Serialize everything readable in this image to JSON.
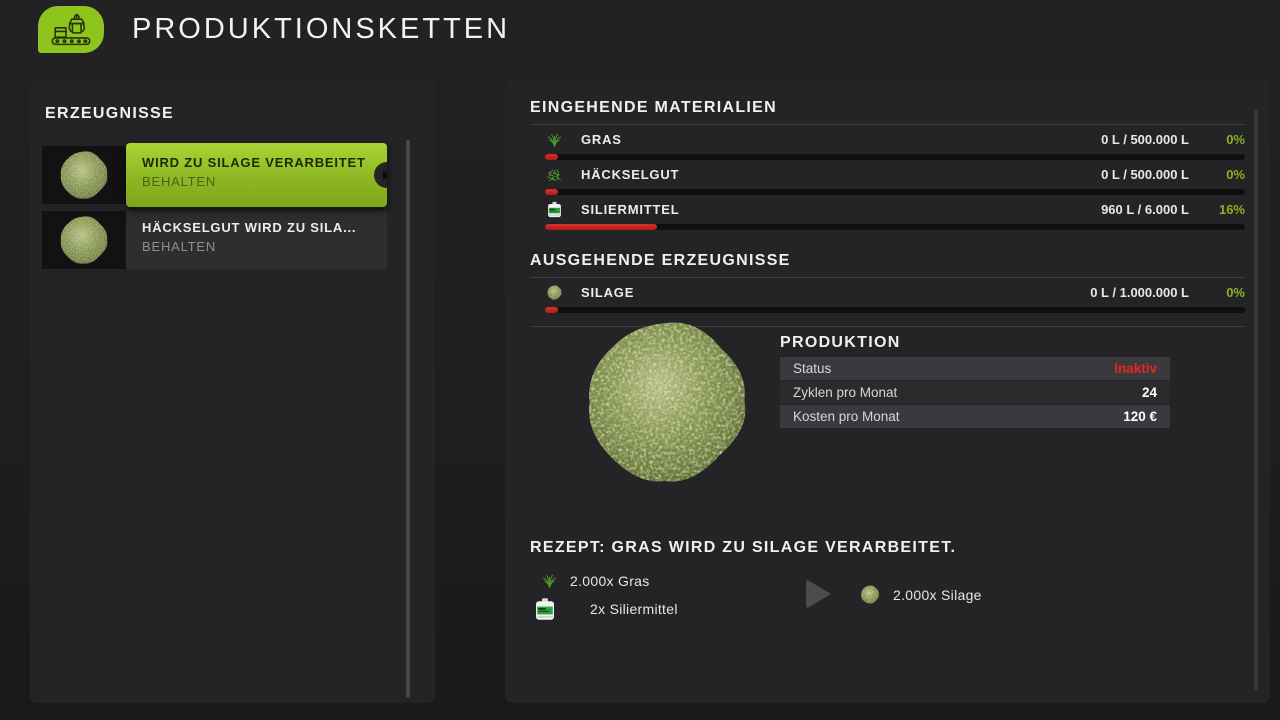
{
  "header": {
    "title": "PRODUKTIONSKETTEN"
  },
  "sidebar": {
    "title": "ERZEUGNISSE",
    "items": [
      {
        "title": "WIRD ZU SILAGE VERARBEITET",
        "subtitle": "BEHALTEN",
        "selected": true
      },
      {
        "title": "HÄCKSELGUT WIRD ZU SILA...",
        "subtitle": "BEHALTEN",
        "selected": false
      }
    ]
  },
  "incoming": {
    "title": "EINGEHENDE MATERIALIEN",
    "rows": [
      {
        "icon": "grass-icon",
        "name": "GRAS",
        "amount": "0 L / 500.000 L",
        "percent": "0%",
        "fill": 0
      },
      {
        "icon": "chaff-icon",
        "name": "HÄCKSELGUT",
        "amount": "0 L / 500.000 L",
        "percent": "0%",
        "fill": 0
      },
      {
        "icon": "canister-icon",
        "name": "SILIERMITTEL",
        "amount": "960 L / 6.000 L",
        "percent": "16%",
        "fill": 16
      }
    ]
  },
  "outgoing": {
    "title": "AUSGEHENDE ERZEUGNISSE",
    "rows": [
      {
        "icon": "silage-icon",
        "name": "SILAGE",
        "amount": "0 L / 1.000.000 L",
        "percent": "0%",
        "fill": 0
      }
    ]
  },
  "production": {
    "title": "PRODUKTION",
    "rows": [
      {
        "label": "Status",
        "value": "Inaktiv"
      },
      {
        "label": "Zyklen pro Monat",
        "value": "24"
      },
      {
        "label": "Kosten pro Monat",
        "value": "120 €"
      }
    ]
  },
  "recipe": {
    "title": "REZEPT: GRAS WIRD ZU SILAGE VERARBEITET.",
    "inputs": [
      {
        "icon": "grass-icon",
        "label": "2.000x Gras"
      },
      {
        "icon": "canister-icon",
        "label": "2x Siliermittel"
      }
    ],
    "outputs": [
      {
        "icon": "silage-icon",
        "label": "2.000x Silage"
      }
    ]
  },
  "colors": {
    "accent_green": "#8dc41d",
    "percent_green": "#8ab022",
    "status_red": "#e6271d",
    "bar_red": "#c4211d"
  }
}
